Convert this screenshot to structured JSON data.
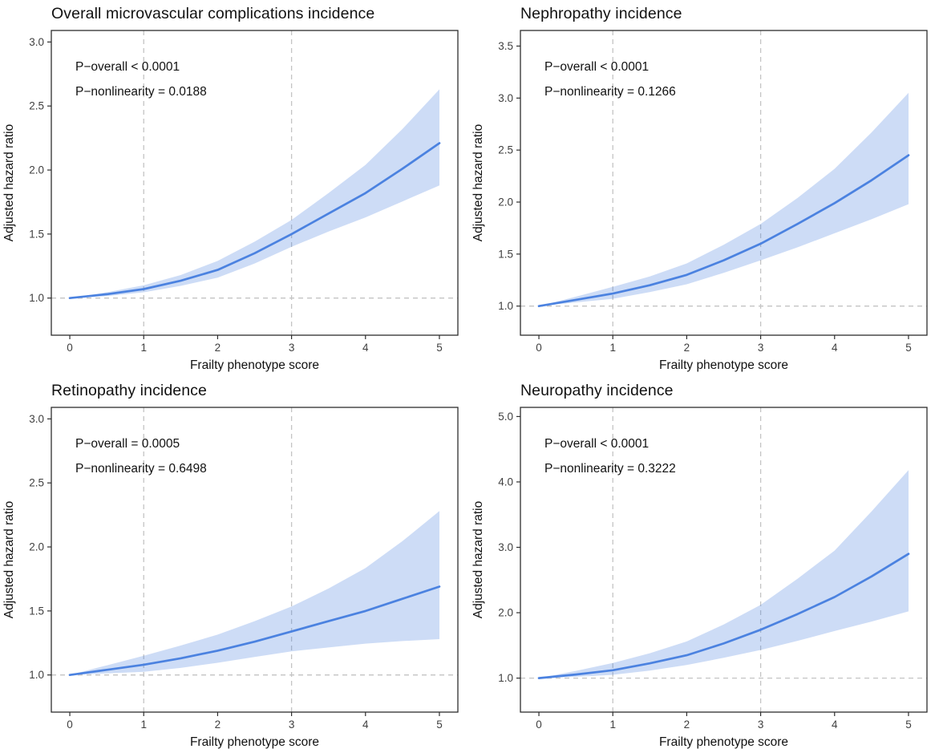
{
  "figure": {
    "xlabel": "Frailty phenotype score",
    "ylabel": "Adjusted hazard ratio",
    "colors": {
      "line": "#4b82e0",
      "ribbon_opacity": 0.28,
      "dashed": "#c4c4c4",
      "border": "#2e2e2e",
      "text": "#111111",
      "tick_text": "#404040",
      "background": "#ffffff"
    }
  },
  "chart_data": [
    {
      "type": "line",
      "title": "Overall microvascular complications incidence",
      "annotations": [
        "P−overall < 0.0001",
        "P−nonlinearity = 0.0188"
      ],
      "xlabel": "Frailty phenotype score",
      "ylabel": "Adjusted hazard ratio",
      "x": [
        0,
        0.5,
        1,
        1.5,
        2,
        2.5,
        3,
        3.5,
        4,
        4.5,
        5
      ],
      "series": [
        {
          "name": "Adjusted hazard ratio",
          "values": [
            1.0,
            1.03,
            1.07,
            1.135,
            1.22,
            1.35,
            1.5,
            1.66,
            1.82,
            2.01,
            2.21
          ]
        },
        {
          "name": "95% CI lower",
          "values": [
            1.0,
            1.015,
            1.045,
            1.095,
            1.16,
            1.27,
            1.4,
            1.52,
            1.63,
            1.755,
            1.88
          ]
        },
        {
          "name": "95% CI upper",
          "values": [
            1.0,
            1.045,
            1.1,
            1.18,
            1.29,
            1.44,
            1.61,
            1.82,
            2.04,
            2.32,
            2.63
          ]
        }
      ],
      "xticks": [
        0,
        1,
        2,
        3,
        4,
        5
      ],
      "xtick_labels": [
        "0",
        "1",
        "2",
        "3",
        "4",
        "5"
      ],
      "yticks": [
        1.0,
        1.5,
        2.0,
        2.5,
        3.0
      ],
      "ytick_labels": [
        "1.0",
        "1.5",
        "2.0",
        "2.5",
        "3.0"
      ],
      "xlim": [
        -0.25,
        5.25
      ],
      "ylim": [
        0.71,
        3.09
      ],
      "reference_lines": {
        "vertical": [
          1,
          3
        ],
        "horizontal": [
          1.0
        ]
      },
      "grid": false,
      "legend": "none"
    },
    {
      "type": "line",
      "title": "Nephropathy incidence",
      "annotations": [
        "P−overall < 0.0001",
        "P−nonlinearity = 0.1266"
      ],
      "xlabel": "Frailty phenotype score",
      "ylabel": "Adjusted hazard ratio",
      "x": [
        0,
        0.5,
        1,
        1.5,
        2,
        2.5,
        3,
        3.5,
        4,
        4.5,
        5
      ],
      "series": [
        {
          "name": "Adjusted hazard ratio",
          "values": [
            1.0,
            1.06,
            1.12,
            1.2,
            1.3,
            1.44,
            1.6,
            1.79,
            1.99,
            2.21,
            2.45
          ]
        },
        {
          "name": "95% CI lower",
          "values": [
            1.0,
            1.035,
            1.07,
            1.135,
            1.21,
            1.32,
            1.44,
            1.565,
            1.7,
            1.835,
            1.98
          ]
        },
        {
          "name": "95% CI upper",
          "values": [
            1.0,
            1.09,
            1.185,
            1.285,
            1.41,
            1.59,
            1.79,
            2.04,
            2.32,
            2.67,
            3.05
          ]
        }
      ],
      "xticks": [
        0,
        1,
        2,
        3,
        4,
        5
      ],
      "xtick_labels": [
        "0",
        "1",
        "2",
        "3",
        "4",
        "5"
      ],
      "yticks": [
        1.0,
        1.5,
        2.0,
        2.5,
        3.0,
        3.5
      ],
      "ytick_labels": [
        "1.0",
        "1.5",
        "2.0",
        "2.5",
        "3.0",
        "3.5"
      ],
      "xlim": [
        -0.25,
        5.25
      ],
      "ylim": [
        0.72,
        3.65
      ],
      "reference_lines": {
        "vertical": [
          1,
          3
        ],
        "horizontal": [
          1.0
        ]
      },
      "grid": false,
      "legend": "none"
    },
    {
      "type": "line",
      "title": "Retinopathy incidence",
      "annotations": [
        "P−overall = 0.0005",
        "P−nonlinearity = 0.6498"
      ],
      "xlabel": "Frailty phenotype score",
      "ylabel": "Adjusted hazard ratio",
      "x": [
        0,
        0.5,
        1,
        1.5,
        2,
        2.5,
        3,
        3.5,
        4,
        4.5,
        5
      ],
      "series": [
        {
          "name": "Adjusted hazard ratio",
          "values": [
            1.0,
            1.04,
            1.08,
            1.13,
            1.19,
            1.26,
            1.34,
            1.42,
            1.5,
            1.595,
            1.69
          ]
        },
        {
          "name": "95% CI lower",
          "values": [
            1.0,
            1.012,
            1.025,
            1.055,
            1.095,
            1.14,
            1.185,
            1.215,
            1.245,
            1.265,
            1.28
          ]
        },
        {
          "name": "95% CI upper",
          "values": [
            1.0,
            1.075,
            1.15,
            1.23,
            1.315,
            1.42,
            1.535,
            1.675,
            1.835,
            2.045,
            2.28
          ]
        }
      ],
      "xticks": [
        0,
        1,
        2,
        3,
        4,
        5
      ],
      "xtick_labels": [
        "0",
        "1",
        "2",
        "3",
        "4",
        "5"
      ],
      "yticks": [
        1.0,
        1.5,
        2.0,
        2.5,
        3.0
      ],
      "ytick_labels": [
        "1.0",
        "1.5",
        "2.0",
        "2.5",
        "3.0"
      ],
      "xlim": [
        -0.25,
        5.25
      ],
      "ylim": [
        0.71,
        3.09
      ],
      "reference_lines": {
        "vertical": [
          1,
          3
        ],
        "horizontal": [
          1.0
        ]
      },
      "grid": false,
      "legend": "none"
    },
    {
      "type": "line",
      "title": "Neuropathy incidence",
      "annotations": [
        "P−overall < 0.0001",
        "P−nonlinearity = 0.3222"
      ],
      "xlabel": "Frailty phenotype score",
      "ylabel": "Adjusted hazard ratio",
      "x": [
        0,
        0.5,
        1,
        1.5,
        2,
        2.5,
        3,
        3.5,
        4,
        4.5,
        5
      ],
      "series": [
        {
          "name": "Adjusted hazard ratio",
          "values": [
            1.0,
            1.055,
            1.12,
            1.225,
            1.35,
            1.53,
            1.74,
            1.98,
            2.24,
            2.555,
            2.9
          ]
        },
        {
          "name": "95% CI lower",
          "values": [
            1.0,
            1.02,
            1.05,
            1.115,
            1.2,
            1.31,
            1.43,
            1.57,
            1.72,
            1.865,
            2.02
          ]
        },
        {
          "name": "95% CI upper",
          "values": [
            1.0,
            1.11,
            1.23,
            1.38,
            1.56,
            1.82,
            2.12,
            2.52,
            2.95,
            3.55,
            4.18
          ]
        }
      ],
      "xticks": [
        0,
        1,
        2,
        3,
        4,
        5
      ],
      "xtick_labels": [
        "0",
        "1",
        "2",
        "3",
        "4",
        "5"
      ],
      "yticks": [
        1.0,
        2.0,
        3.0,
        4.0,
        5.0
      ],
      "ytick_labels": [
        "1.0",
        "2.0",
        "3.0",
        "4.0",
        "5.0"
      ],
      "xlim": [
        -0.25,
        5.25
      ],
      "ylim": [
        0.48,
        5.14
      ],
      "reference_lines": {
        "vertical": [
          1,
          3
        ],
        "horizontal": [
          1.0
        ]
      },
      "grid": false,
      "legend": "none"
    }
  ]
}
